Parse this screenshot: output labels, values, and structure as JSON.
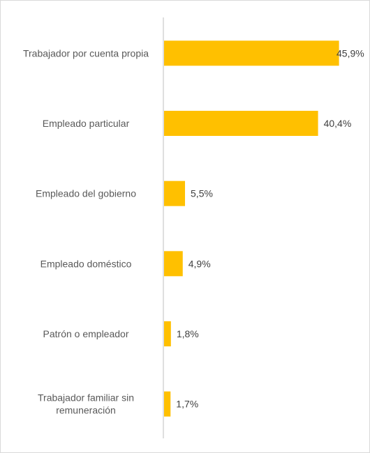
{
  "chart_data": {
    "type": "bar",
    "orientation": "horizontal",
    "title": "",
    "xlabel": "",
    "ylabel": "",
    "categories": [
      "Trabajador por cuenta propia",
      "Empleado particular",
      "Empleado del gobierno",
      "Empleado doméstico",
      "Patrón o empleador",
      "Trabajador familiar sin remuneración"
    ],
    "category_lines": [
      [
        "Trabajador por cuenta propia"
      ],
      [
        "Empleado particular"
      ],
      [
        "Empleado del gobierno"
      ],
      [
        "Empleado doméstico"
      ],
      [
        "Patrón o empleador"
      ],
      [
        "Trabajador familiar sin",
        "remuneración"
      ]
    ],
    "values": [
      45.9,
      40.4,
      5.5,
      4.9,
      1.8,
      1.7
    ],
    "value_labels": [
      "45,9%",
      "40,4%",
      "5,5%",
      "4,9%",
      "1,8%",
      "1,7%"
    ],
    "unit": "%",
    "xlim": [
      0,
      50
    ],
    "grid": false,
    "legend": "none",
    "colors": {
      "bar": "#FFC000",
      "axis": "#bfbfbf",
      "frame": "#d9d9d9"
    }
  }
}
